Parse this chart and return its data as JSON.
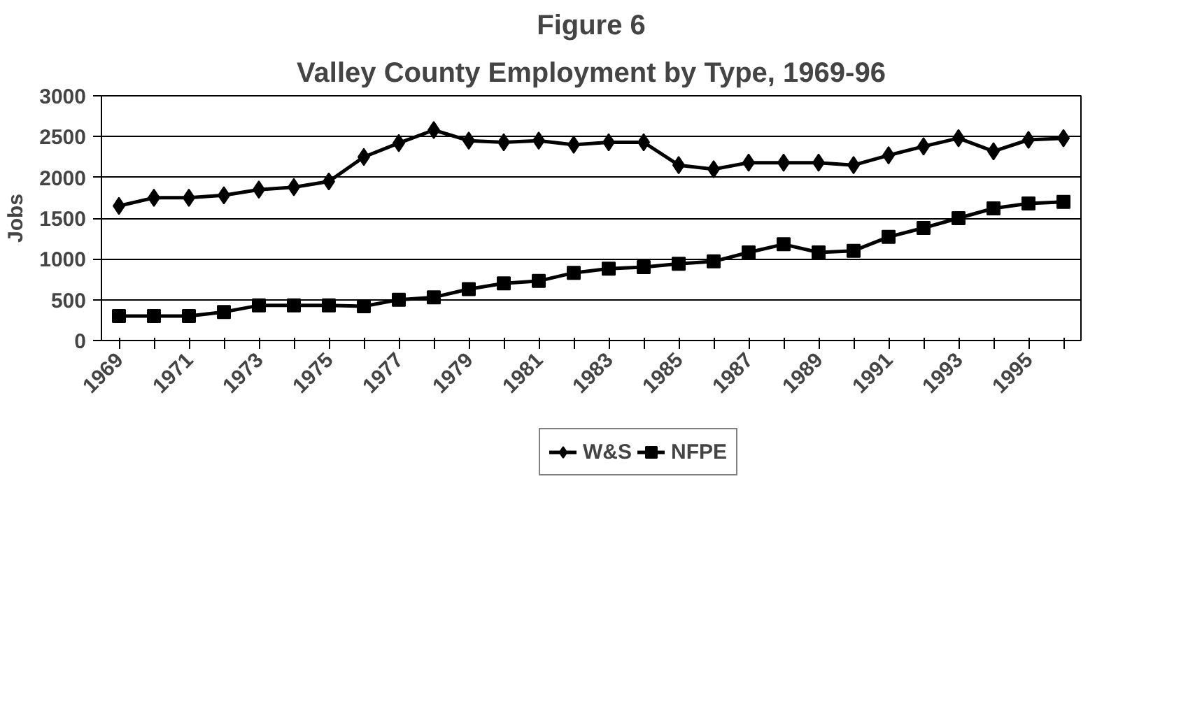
{
  "chart_data": {
    "type": "line",
    "title": "Figure 6",
    "subtitle": "Valley County Employment by Type, 1969-96",
    "ylabel": "Jobs",
    "categories": [
      "1969",
      null,
      "1971",
      null,
      "1973",
      null,
      "1975",
      null,
      "1977",
      null,
      "1979",
      null,
      "1981",
      null,
      "1983",
      null,
      "1985",
      null,
      "1987",
      null,
      "1989",
      null,
      "1991",
      null,
      "1993",
      null,
      "1995",
      null
    ],
    "series": [
      {
        "name": "W&S",
        "color": "#000000",
        "marker": "diamond",
        "values": [
          1650,
          1750,
          1750,
          1780,
          1850,
          1880,
          1950,
          2250,
          2420,
          2580,
          2450,
          2430,
          2450,
          2400,
          2430,
          2430,
          2150,
          2100,
          2180,
          2180,
          2180,
          2150,
          2270,
          2380,
          2480,
          2320,
          2460,
          2480
        ]
      },
      {
        "name": "NFPE",
        "color": "#000000",
        "marker": "square",
        "values": [
          300,
          300,
          300,
          350,
          430,
          430,
          430,
          420,
          500,
          530,
          630,
          700,
          730,
          830,
          880,
          900,
          940,
          970,
          1080,
          1180,
          1080,
          1100,
          1270,
          1380,
          1500,
          1620,
          1680,
          1700
        ]
      }
    ],
    "ylim": [
      0,
      3000
    ],
    "yticks": [
      0,
      500,
      1000,
      1500,
      2000,
      2500,
      3000
    ],
    "grid": "y",
    "legend": "bottom",
    "line_style": "solid"
  }
}
